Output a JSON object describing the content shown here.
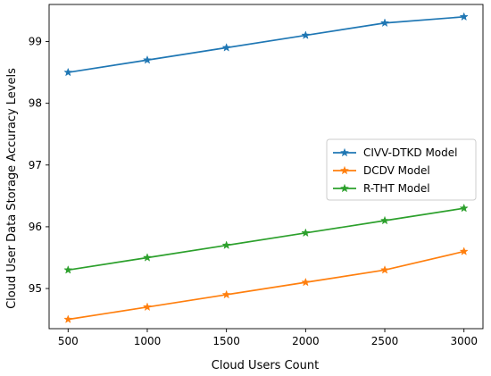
{
  "chart_data": {
    "type": "line",
    "title": "",
    "xlabel": "Cloud Users Count",
    "ylabel": "Cloud User Data Storage Accuracy Levels",
    "x": [
      500,
      1000,
      1500,
      2000,
      2500,
      3000
    ],
    "xlim": [
      380,
      3120
    ],
    "ylim": [
      94.35,
      99.6
    ],
    "xticks": [
      500,
      1000,
      1500,
      2000,
      2500,
      3000
    ],
    "yticks": [
      95,
      96,
      97,
      98,
      99
    ],
    "grid": false,
    "legend_position": "center-right",
    "marker": "star",
    "series": [
      {
        "name": "CIVV-DTKD Model",
        "color": "#1f77b4",
        "values": [
          98.5,
          98.7,
          98.9,
          99.1,
          99.3,
          99.4
        ]
      },
      {
        "name": "DCDV Model",
        "color": "#ff7f0e",
        "values": [
          94.5,
          94.7,
          94.9,
          95.1,
          95.3,
          95.6
        ]
      },
      {
        "name": "R-THT Model",
        "color": "#2ca02c",
        "values": [
          95.3,
          95.5,
          95.7,
          95.9,
          96.1,
          96.3
        ]
      }
    ]
  }
}
